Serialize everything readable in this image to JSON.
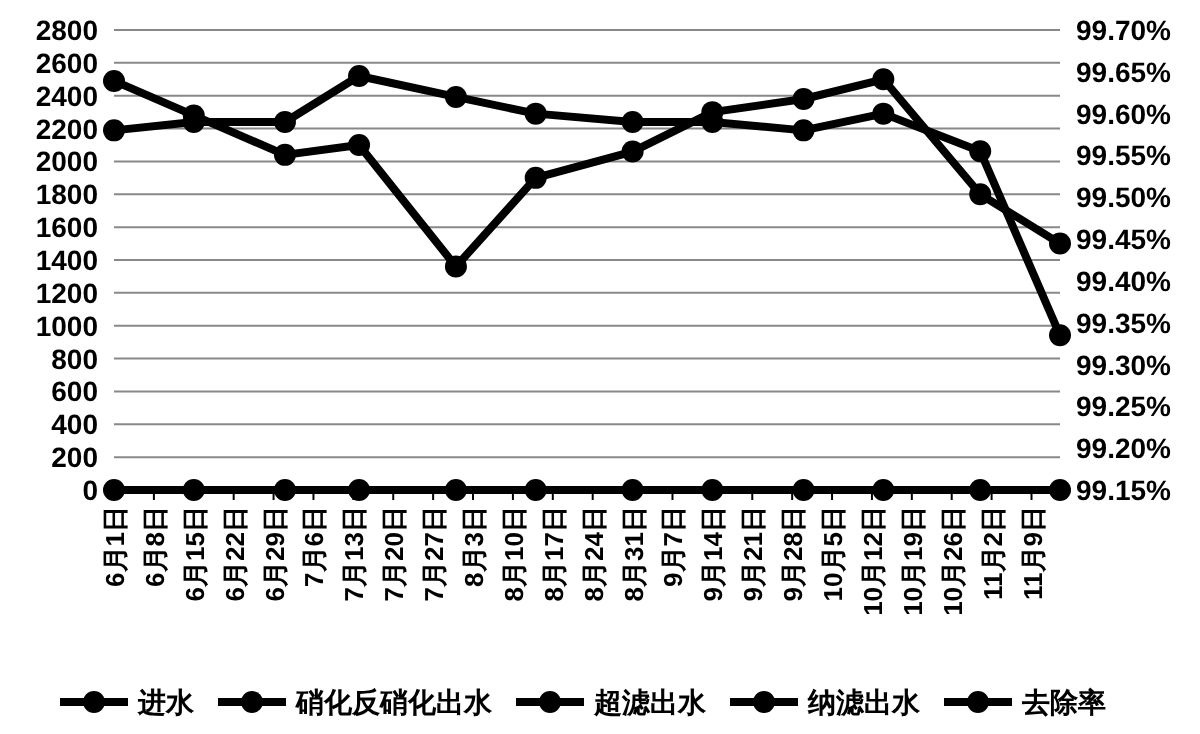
{
  "chart_data": {
    "type": "line",
    "x": [
      "--06-01",
      "--06-15",
      "--07-01",
      "--07-14",
      "--07-31",
      "--08-14",
      "--08-31",
      "--09-14",
      "--09-30",
      "--10-14",
      "--10-31",
      "--11-14"
    ],
    "series": [
      {
        "name": "进水",
        "color": "#000000",
        "values": [
          2490,
          2280,
          2040,
          2100,
          1360,
          1900,
          2060,
          2300,
          2380,
          2500,
          1800,
          1500
        ]
      },
      {
        "name": "硝化反硝化出水",
        "color": "#000000",
        "values": [
          null,
          null,
          null,
          null,
          null,
          null,
          null,
          null,
          null,
          null,
          null,
          null
        ]
      },
      {
        "name": "超滤出水",
        "color": "#000000",
        "values": [
          null,
          null,
          null,
          null,
          null,
          null,
          null,
          null,
          null,
          null,
          null,
          null
        ]
      },
      {
        "name": "纳滤出水",
        "color": "#000000",
        "values": [
          0,
          0,
          0,
          0,
          0,
          0,
          0,
          0,
          0,
          0,
          0,
          0
        ]
      },
      {
        "name": "去除率",
        "color": "#000000",
        "axis": "y2",
        "values": [
          99.58,
          99.59,
          99.59,
          99.645,
          99.62,
          99.6,
          99.59,
          99.59,
          99.58,
          99.6,
          99.555,
          99.335
        ]
      }
    ],
    "xlim": [
      "--06-01",
      "--11-14"
    ],
    "xticks": [
      {
        "value": "--06-01",
        "label": "6月1日"
      },
      {
        "value": "--06-08",
        "label": "6月8日"
      },
      {
        "value": "--06-15",
        "label": "6月15日"
      },
      {
        "value": "--06-22",
        "label": "6月22日"
      },
      {
        "value": "--06-29",
        "label": "6月29日"
      },
      {
        "value": "--07-06",
        "label": "7月6日"
      },
      {
        "value": "--07-13",
        "label": "7月13日"
      },
      {
        "value": "--07-20",
        "label": "7月20日"
      },
      {
        "value": "--07-27",
        "label": "7月27日"
      },
      {
        "value": "--08-03",
        "label": "8月3日"
      },
      {
        "value": "--08-10",
        "label": "8月10日"
      },
      {
        "value": "--08-17",
        "label": "8月17日"
      },
      {
        "value": "--08-24",
        "label": "8月24日"
      },
      {
        "value": "--08-31",
        "label": "8月31日"
      },
      {
        "value": "--09-07",
        "label": "9月7日"
      },
      {
        "value": "--09-14",
        "label": "9月14日"
      },
      {
        "value": "--09-21",
        "label": "9月21日"
      },
      {
        "value": "--09-28",
        "label": "9月28日"
      },
      {
        "value": "--10-05",
        "label": "10月5日"
      },
      {
        "value": "--10-12",
        "label": "10月12日"
      },
      {
        "value": "--10-19",
        "label": "10月19日"
      },
      {
        "value": "--10-26",
        "label": "10月26日"
      },
      {
        "value": "--11-02",
        "label": "11月2日"
      },
      {
        "value": "--11-09",
        "label": "11月9日"
      }
    ],
    "ylim": [
      0,
      2800
    ],
    "yticks": [
      0,
      200,
      400,
      600,
      800,
      1000,
      1200,
      1400,
      1600,
      1800,
      2000,
      2200,
      2400,
      2600,
      2800
    ],
    "y2lim": [
      99.15,
      99.7
    ],
    "y2ticks": [
      {
        "value": 99.15,
        "label": "99.15%"
      },
      {
        "value": 99.2,
        "label": "99.20%"
      },
      {
        "value": 99.25,
        "label": "99.25%"
      },
      {
        "value": 99.3,
        "label": "99.30%"
      },
      {
        "value": 99.35,
        "label": "99.35%"
      },
      {
        "value": 99.4,
        "label": "99.40%"
      },
      {
        "value": 99.45,
        "label": "99.45%"
      },
      {
        "value": 99.5,
        "label": "99.50%"
      },
      {
        "value": 99.55,
        "label": "99.55%"
      },
      {
        "value": 99.6,
        "label": "99.60%"
      },
      {
        "value": 99.65,
        "label": "99.65%"
      },
      {
        "value": 99.7,
        "label": "99.70%"
      }
    ],
    "grid": "y",
    "legend": "bottom",
    "marker": "circle",
    "line_style": "solid"
  }
}
